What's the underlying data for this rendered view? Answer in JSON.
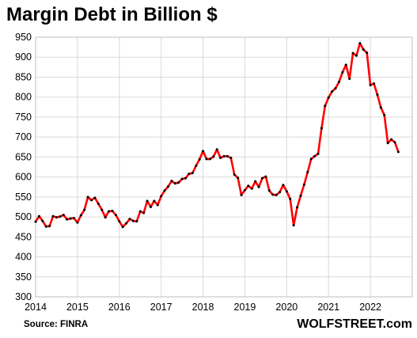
{
  "chart_data": {
    "type": "line",
    "title": "Margin Debt in Billion $",
    "source": "Source: FINRA",
    "brand": "WOLFSTREET.com",
    "xlabel": "",
    "ylabel": "",
    "xlim": [
      2014,
      2023
    ],
    "ylim": [
      300,
      950
    ],
    "grid": true,
    "legend": "none",
    "x_ticks": [
      2014,
      2015,
      2016,
      2017,
      2018,
      2019,
      2020,
      2021,
      2022
    ],
    "y_ticks": [
      300,
      350,
      400,
      450,
      500,
      550,
      600,
      650,
      700,
      750,
      800,
      850,
      900,
      950
    ],
    "line_color": "#ff0000",
    "marker_color": "#000000",
    "series": [
      {
        "frequency": "monthly",
        "start": "2014-01",
        "values": [
          488,
          502,
          490,
          476,
          477,
          502,
          499,
          501,
          505,
          494,
          496,
          497,
          486,
          504,
          518,
          550,
          542,
          548,
          533,
          518,
          499,
          514,
          515,
          505,
          489,
          475,
          484,
          495,
          490,
          489,
          514,
          510,
          540,
          525,
          540,
          530,
          552,
          566,
          576,
          590,
          584,
          586,
          595,
          597,
          608,
          610,
          628,
          644,
          665,
          645,
          645,
          651,
          669,
          648,
          652,
          652,
          648,
          606,
          598,
          555,
          567,
          578,
          571,
          589,
          575,
          597,
          601,
          566,
          556,
          555,
          562,
          580,
          564,
          545,
          479,
          524,
          553,
          581,
          612,
          645,
          652,
          658,
          722,
          778,
          799,
          814,
          822,
          838,
          862,
          881,
          846,
          910,
          904,
          935,
          919,
          911,
          830,
          834,
          806,
          774,
          755,
          685,
          694,
          687,
          663
        ]
      }
    ]
  }
}
